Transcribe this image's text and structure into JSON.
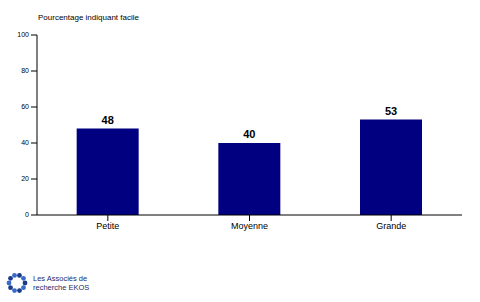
{
  "chart_data": {
    "type": "bar",
    "y_label": "Pourcentage indiquant facile",
    "categories": [
      "Petite",
      "Moyenne",
      "Grande"
    ],
    "values": [
      48,
      40,
      53
    ],
    "color": "#000080",
    "ylim": [
      0,
      100
    ],
    "yticks": [
      0,
      20,
      40,
      60,
      80,
      100
    ],
    "grid": false,
    "data_labels": true,
    "annotations": [
      "Les Associés de",
      "recherche EKOS"
    ]
  }
}
